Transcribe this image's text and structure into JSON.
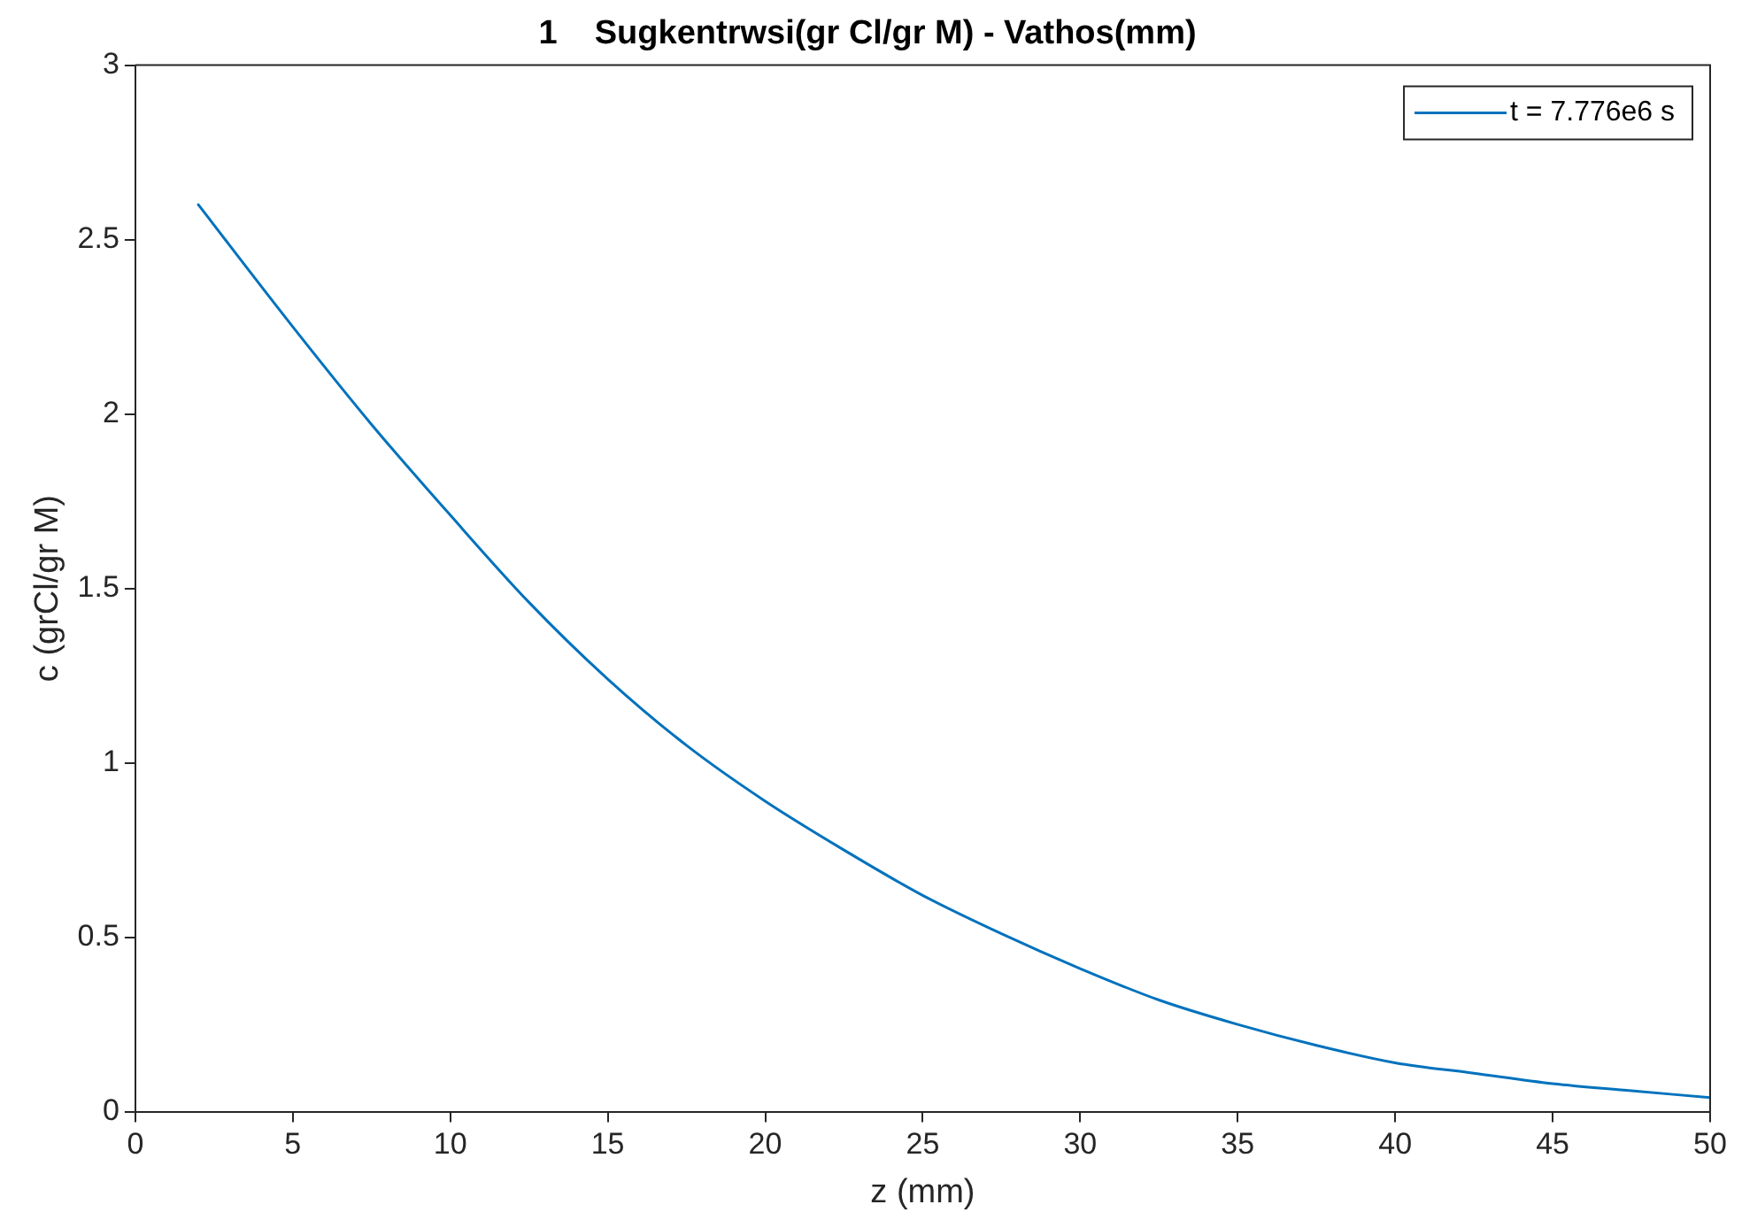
{
  "chart_data": {
    "type": "line",
    "title": "1    Sugkentrwsi(gr Cl/gr M) - Vathos(mm)",
    "xlabel": "z (mm)",
    "ylabel": "c (grCl/gr M)",
    "x": [
      2,
      5,
      7.5,
      10,
      12.5,
      15,
      17.5,
      20,
      22.5,
      25,
      27.5,
      30,
      32.5,
      35,
      37.5,
      40,
      42.5,
      45,
      47.5,
      50
    ],
    "series": [
      {
        "name": "t = 7.776e6 s",
        "color": "#0072bd",
        "values": [
          2.6,
          2.25,
          1.97,
          1.71,
          1.46,
          1.24,
          1.05,
          0.89,
          0.75,
          0.62,
          0.51,
          0.41,
          0.32,
          0.25,
          0.19,
          0.14,
          0.11,
          0.08,
          0.06,
          0.04
        ]
      }
    ],
    "xlim": [
      0,
      50
    ],
    "xticks": [
      0,
      5,
      10,
      15,
      20,
      25,
      30,
      35,
      40,
      45,
      50
    ],
    "ylim": [
      0,
      3
    ],
    "yticks": [
      0,
      0.5,
      1,
      1.5,
      2,
      2.5,
      3
    ],
    "grid": false,
    "legend": "top right",
    "marker": "none",
    "line_style": "solid"
  }
}
